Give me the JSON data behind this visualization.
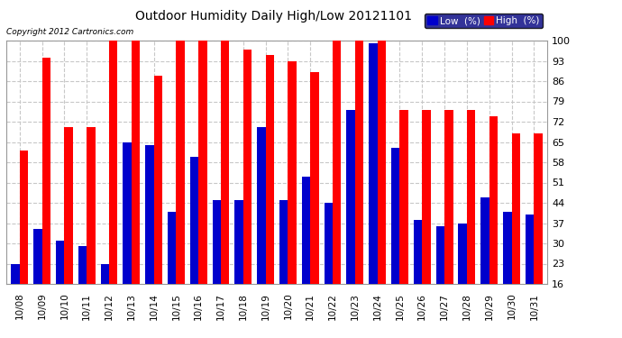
{
  "title": "Outdoor Humidity Daily High/Low 20121101",
  "copyright": "Copyright 2012 Cartronics.com",
  "categories": [
    "10/08",
    "10/09",
    "10/10",
    "10/11",
    "10/12",
    "10/13",
    "10/14",
    "10/15",
    "10/16",
    "10/17",
    "10/18",
    "10/19",
    "10/20",
    "10/21",
    "10/22",
    "10/23",
    "10/24",
    "10/25",
    "10/26",
    "10/27",
    "10/28",
    "10/29",
    "10/30",
    "10/31"
  ],
  "high_values": [
    62,
    94,
    70,
    70,
    100,
    100,
    88,
    100,
    100,
    100,
    97,
    95,
    93,
    89,
    100,
    100,
    100,
    76,
    76,
    76,
    76,
    74,
    68,
    68
  ],
  "low_values": [
    23,
    35,
    31,
    29,
    23,
    65,
    64,
    41,
    60,
    45,
    45,
    70,
    45,
    53,
    44,
    76,
    99,
    63,
    38,
    36,
    37,
    46,
    41,
    40
  ],
  "high_color": "#ff0000",
  "low_color": "#0000cc",
  "bg_color": "#ffffff",
  "plot_bg_color": "#ffffff",
  "grid_color": "#c8c8c8",
  "ylim": [
    16,
    100
  ],
  "yticks": [
    16,
    23,
    30,
    37,
    44,
    51,
    58,
    65,
    72,
    79,
    86,
    93,
    100
  ],
  "bar_width": 0.38,
  "legend_low_label": "Low  (%)",
  "legend_high_label": "High  (%)"
}
